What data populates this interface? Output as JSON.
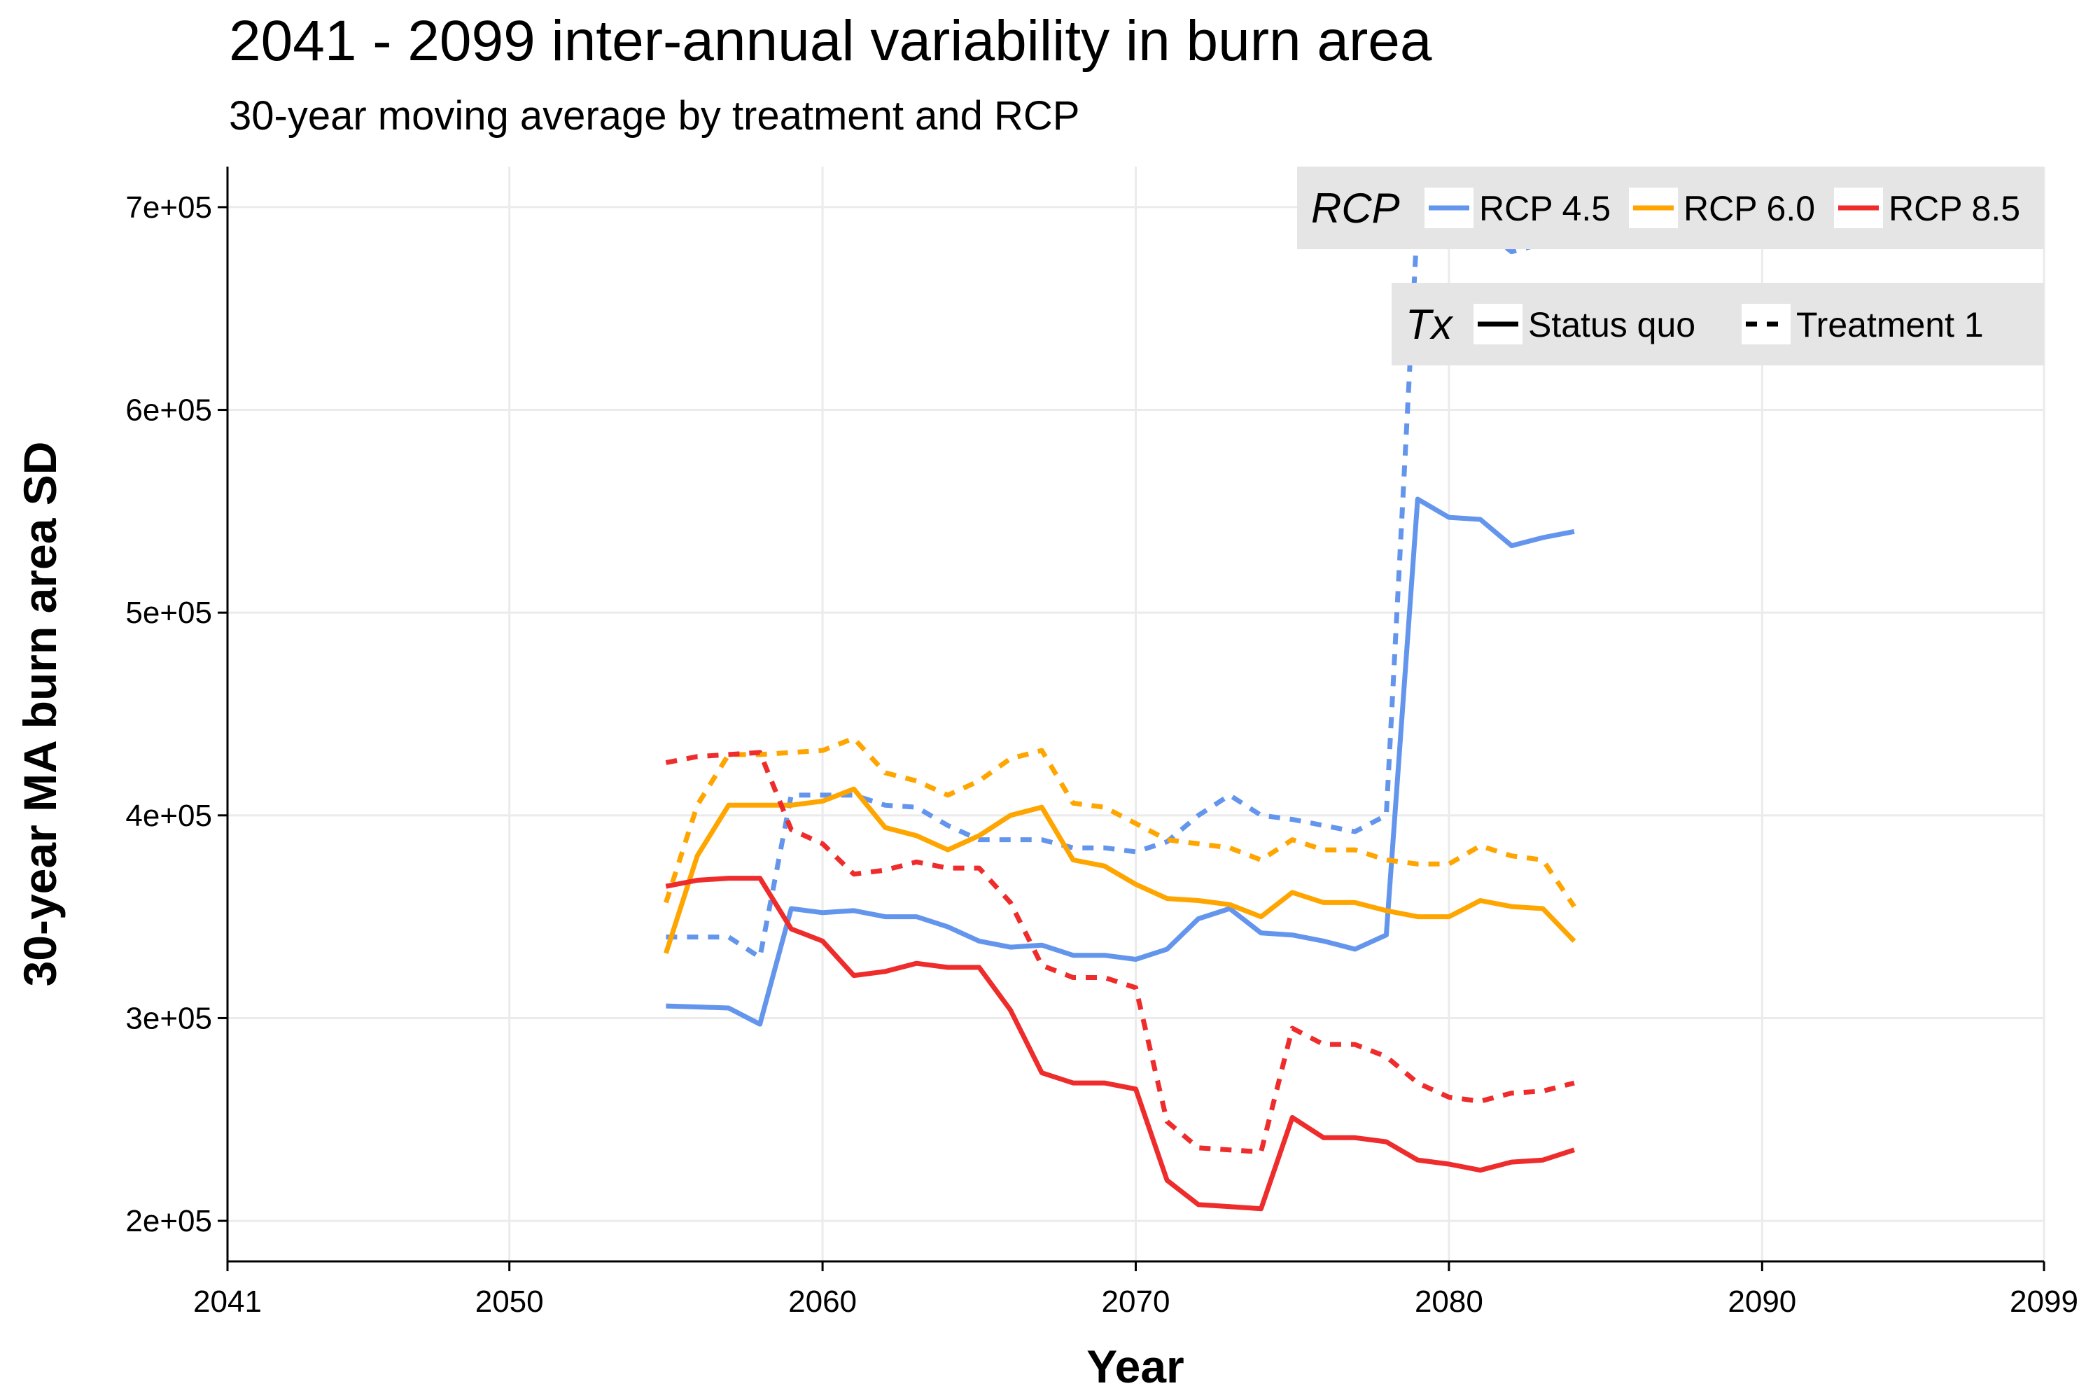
{
  "chart_data": {
    "type": "line",
    "title": "2041 - 2099 inter-annual variability in burn area",
    "subtitle": "30-year moving average by treatment and RCP",
    "xlabel": "Year",
    "ylabel": "30-year MA burn area SD",
    "xlim": [
      2041,
      2099
    ],
    "ylim": [
      180000,
      720000
    ],
    "x_ticks": [
      2041,
      2050,
      2060,
      2070,
      2080,
      2090,
      2099
    ],
    "y_ticks": [
      200000,
      300000,
      400000,
      500000,
      600000,
      700000
    ],
    "y_tick_labels": [
      "2e+05",
      "3e+05",
      "4e+05",
      "5e+05",
      "6e+05",
      "7e+05"
    ],
    "grid": true,
    "legend": {
      "placement": "top-right",
      "colour_title": "RCP",
      "linetype_title": "Tx",
      "colour_entries": [
        {
          "label": "RCP 4.5",
          "color": "#6495ED"
        },
        {
          "label": "RCP 6.0",
          "color": "#FFA500"
        },
        {
          "label": "RCP 8.5",
          "color": "#EE2C2C"
        }
      ],
      "linetype_entries": [
        {
          "label": "Status quo",
          "dash": "solid"
        },
        {
          "label": "Treatment 1",
          "dash": "dashed"
        }
      ]
    },
    "x": [
      2055,
      2056,
      2057,
      2058,
      2059,
      2060,
      2061,
      2062,
      2063,
      2064,
      2065,
      2066,
      2067,
      2068,
      2069,
      2070,
      2071,
      2072,
      2073,
      2074,
      2075,
      2076,
      2077,
      2078,
      2079,
      2080,
      2081,
      2082,
      2083,
      2084
    ],
    "series": [
      {
        "name": "RCP 4.5 / Status quo",
        "rcp": "RCP 4.5",
        "tx": "Status quo",
        "color": "#6495ED",
        "dash": "solid",
        "values": [
          306000,
          305500,
          305000,
          297000,
          354000,
          352000,
          353000,
          350000,
          350000,
          345000,
          338000,
          335000,
          336000,
          331000,
          331000,
          329000,
          334000,
          349000,
          354000,
          342000,
          341000,
          338000,
          334000,
          341000,
          556000,
          547000,
          546000,
          533000,
          537000,
          540000
        ]
      },
      {
        "name": "RCP 4.5 / Treatment 1",
        "rcp": "RCP 4.5",
        "tx": "Treatment 1",
        "color": "#6495ED",
        "dash": "dashed",
        "values": [
          340000,
          340000,
          340000,
          330000,
          410000,
          410000,
          410000,
          405000,
          404000,
          395000,
          388000,
          388000,
          388000,
          384000,
          384000,
          382000,
          387000,
          400000,
          410000,
          400000,
          398000,
          395000,
          392000,
          400000,
          695000,
          690000,
          690000,
          678000,
          682000,
          685000
        ]
      },
      {
        "name": "RCP 6.0 / Status quo",
        "rcp": "RCP 6.0",
        "tx": "Status quo",
        "color": "#FFA500",
        "dash": "solid",
        "values": [
          332000,
          380000,
          405000,
          405000,
          405000,
          407000,
          413000,
          394000,
          390000,
          383000,
          390000,
          400000,
          404000,
          378000,
          375000,
          366000,
          359000,
          358000,
          356000,
          350000,
          362000,
          357000,
          357000,
          353000,
          350000,
          350000,
          358000,
          355000,
          354000,
          338000
        ]
      },
      {
        "name": "RCP 6.0 / Treatment 1",
        "rcp": "RCP 6.0",
        "tx": "Treatment 1",
        "color": "#FFA500",
        "dash": "dashed",
        "values": [
          357000,
          405000,
          430000,
          430000,
          431000,
          432000,
          438000,
          421000,
          417000,
          410000,
          417000,
          428000,
          432000,
          406000,
          404000,
          396000,
          388000,
          386000,
          384000,
          378000,
          388000,
          383000,
          383000,
          378000,
          376000,
          376000,
          385000,
          380000,
          378000,
          355000
        ]
      },
      {
        "name": "RCP 8.5 / Status quo",
        "rcp": "RCP 8.5",
        "tx": "Status quo",
        "color": "#EE2C2C",
        "dash": "solid",
        "values": [
          365000,
          368000,
          369000,
          369000,
          344000,
          338000,
          321000,
          323000,
          327000,
          325000,
          325000,
          304000,
          273000,
          268000,
          268000,
          265000,
          220000,
          208000,
          207000,
          206000,
          251000,
          241000,
          241000,
          239000,
          230000,
          228000,
          225000,
          229000,
          230000,
          235000
        ]
      },
      {
        "name": "RCP 8.5 / Treatment 1",
        "rcp": "RCP 8.5",
        "tx": "Treatment 1",
        "color": "#EE2C2C",
        "dash": "dashed",
        "values": [
          426000,
          429000,
          430000,
          431000,
          393000,
          386000,
          371000,
          373000,
          377000,
          374000,
          374000,
          357000,
          326000,
          320000,
          320000,
          315000,
          249000,
          236000,
          235000,
          234000,
          295000,
          287000,
          287000,
          281000,
          268000,
          261000,
          259000,
          263000,
          264000,
          268000
        ]
      }
    ]
  }
}
